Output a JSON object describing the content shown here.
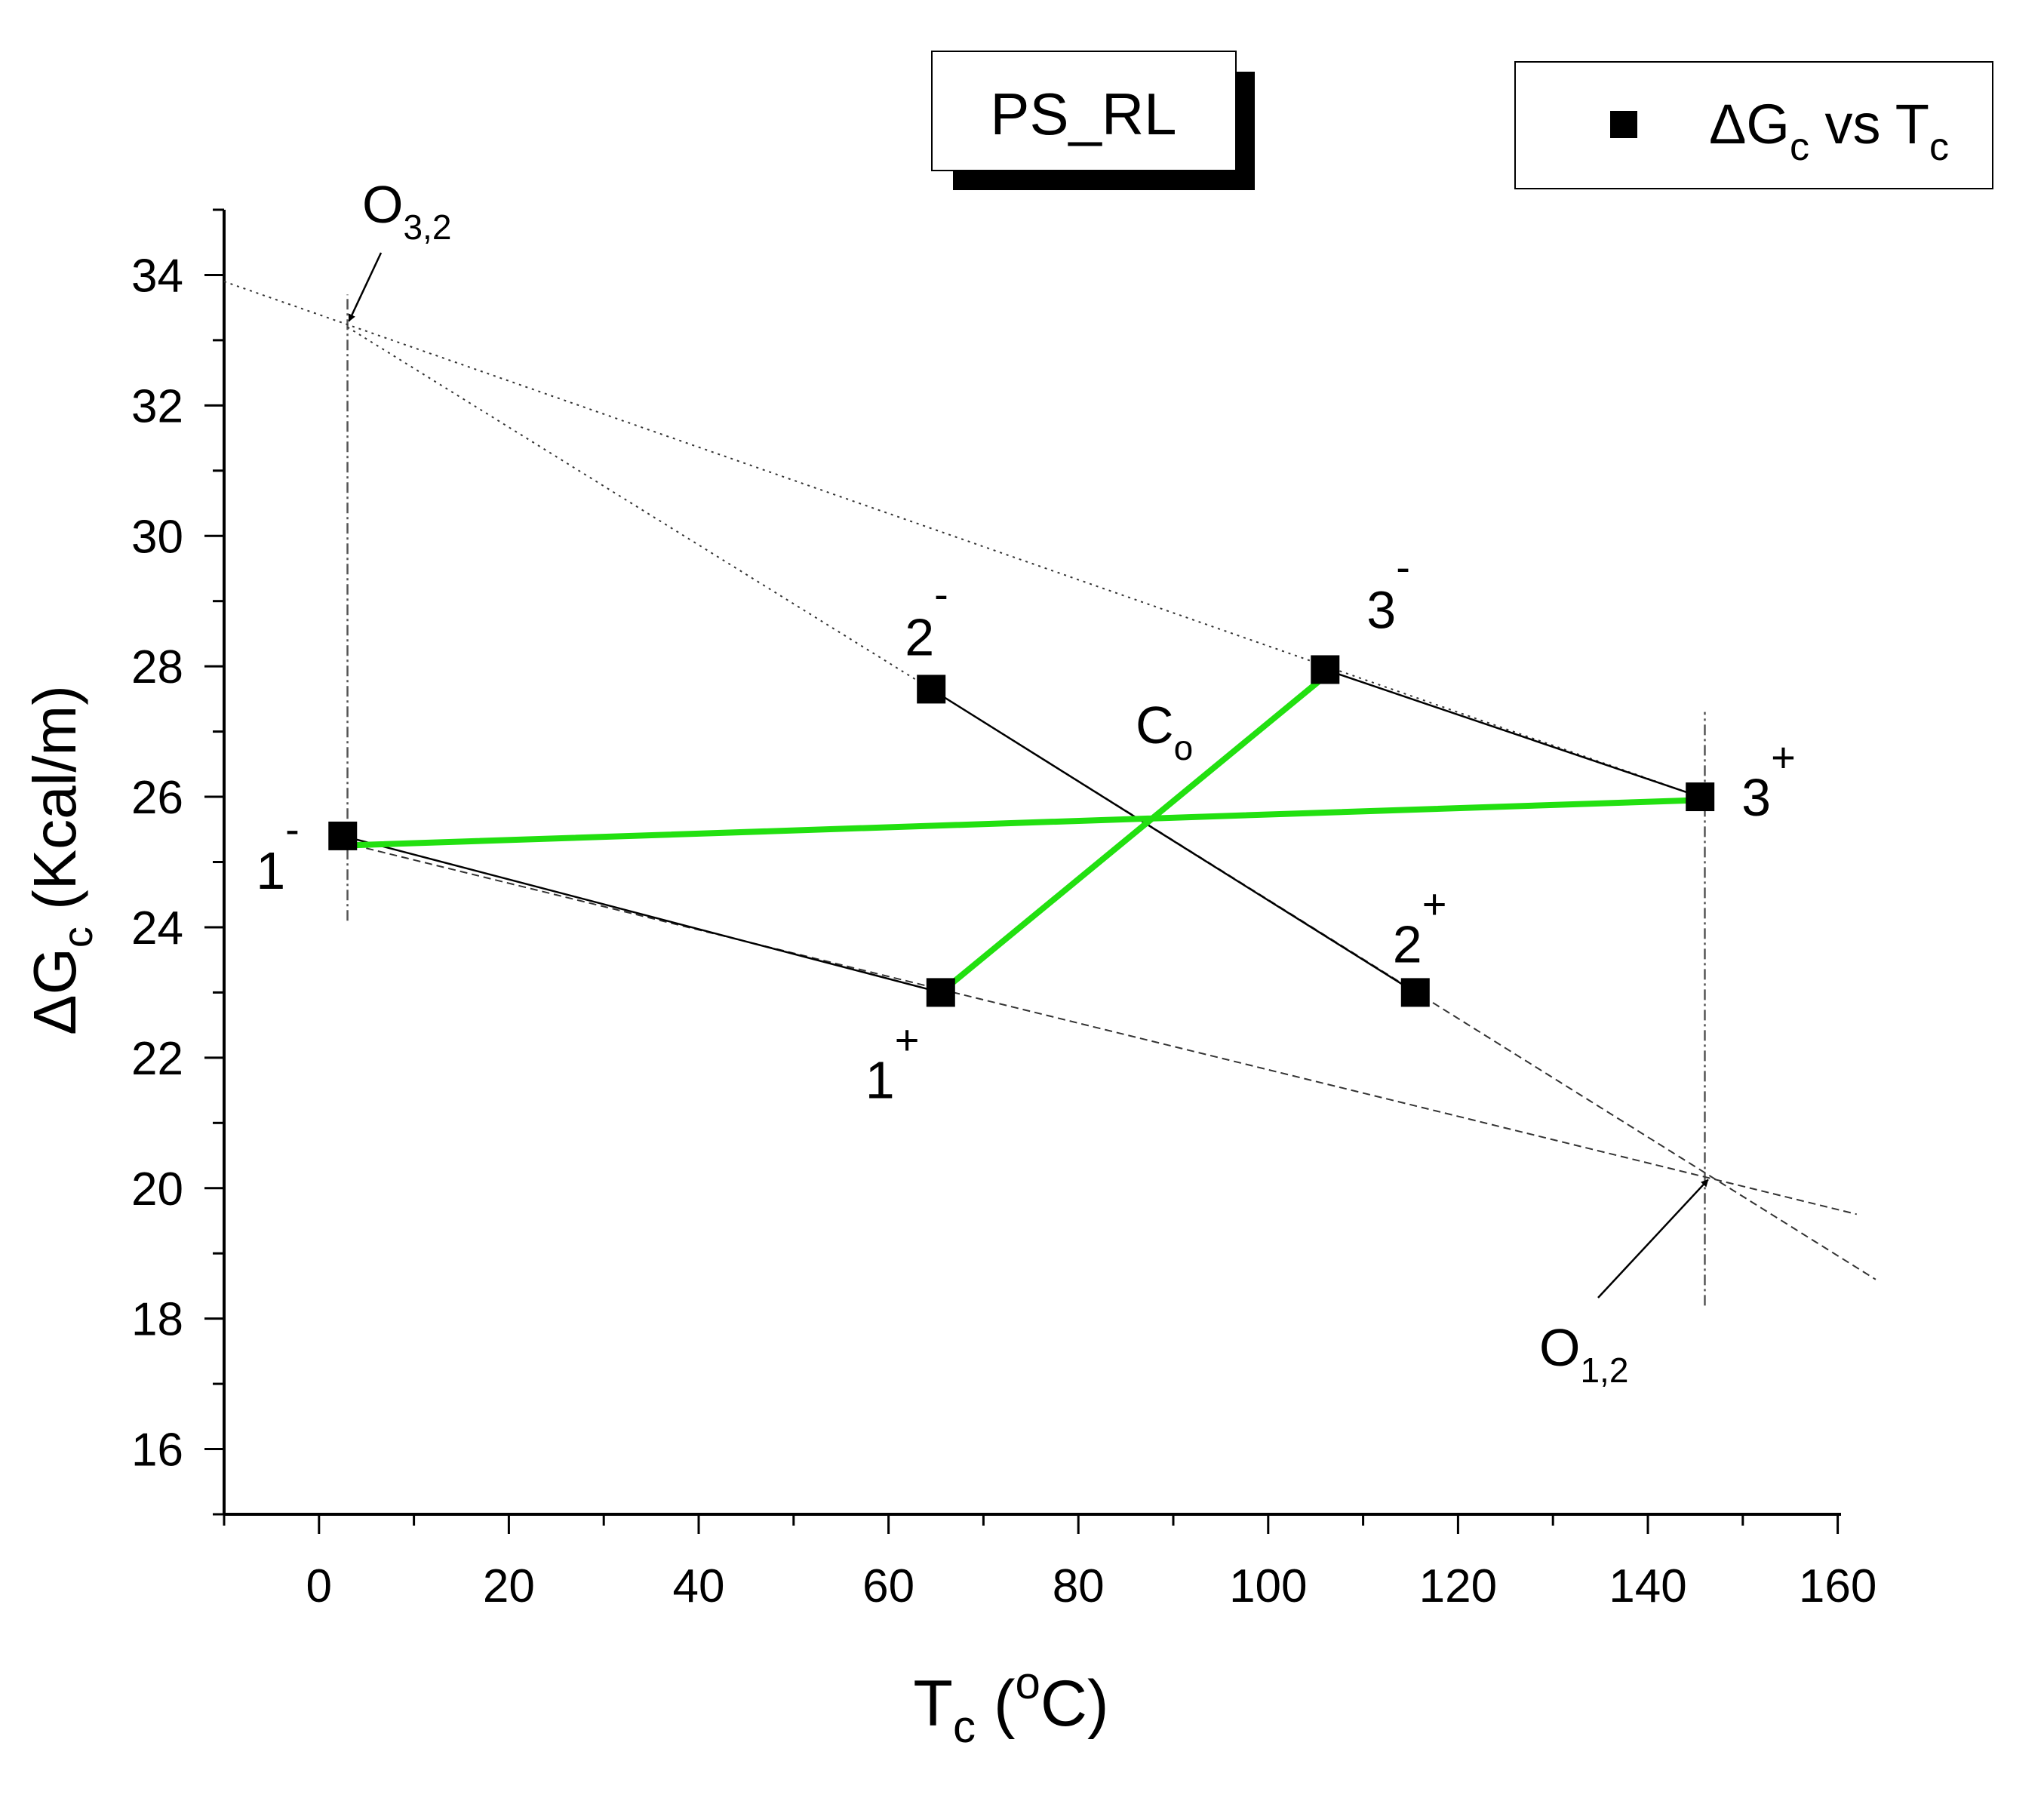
{
  "chart_data": {
    "type": "scatter",
    "title": "PS_RL",
    "xlabel": {
      "main": "T",
      "sub": "c",
      "open": " (",
      "sup": "o",
      "close": "C)"
    },
    "ylabel": {
      "main": "ΔG",
      "sub": "c",
      "rest": " (Kcal/m)"
    },
    "xlim": [
      -10,
      160
    ],
    "ylim": [
      15,
      35
    ],
    "xticks": [
      0,
      20,
      40,
      60,
      80,
      100,
      120,
      140,
      160
    ],
    "yticks": [
      16,
      18,
      20,
      22,
      24,
      26,
      28,
      30,
      32,
      34
    ],
    "tick_labels_x": [
      "0",
      "20",
      "40",
      "60",
      "80",
      "100",
      "120",
      "140",
      "160"
    ],
    "tick_labels_y": [
      "16",
      "18",
      "20",
      "22",
      "24",
      "26",
      "28",
      "30",
      "32",
      "34"
    ],
    "legend": {
      "position": "top-right",
      "label_main": "ΔG",
      "label_sub": "c",
      "label_mid": " vs T",
      "label_sub2": "c"
    },
    "points": [
      {
        "id": "p1m",
        "x": 2.5,
        "y": 25.4,
        "label": "1",
        "sign": "-"
      },
      {
        "id": "p1p",
        "x": 65.5,
        "y": 23.0,
        "label": "1",
        "sign": "+"
      },
      {
        "id": "p2m",
        "x": 64.5,
        "y": 27.65,
        "label": "2",
        "sign": "-"
      },
      {
        "id": "p2p",
        "x": 115.5,
        "y": 23.0,
        "label": "2",
        "sign": "+"
      },
      {
        "id": "p3m",
        "x": 106.0,
        "y": 27.95,
        "label": "3",
        "sign": "-"
      },
      {
        "id": "p3p",
        "x": 145.5,
        "y": 26.0,
        "label": "3",
        "sign": "+"
      }
    ],
    "segments_solid": [
      {
        "from": [
          2.5,
          25.4
        ],
        "to": [
          65.5,
          23.0
        ]
      },
      {
        "from": [
          64.5,
          27.65
        ],
        "to": [
          115.5,
          23.0
        ]
      },
      {
        "from": [
          106.0,
          27.95
        ],
        "to": [
          145.5,
          26.0
        ]
      }
    ],
    "green_lines": [
      {
        "from": [
          2.0,
          25.25
        ],
        "to": [
          145.5,
          25.95
        ]
      },
      {
        "from": [
          65.5,
          23.0
        ],
        "to": [
          106.0,
          27.85
        ]
      }
    ],
    "dashed_lines": [
      {
        "from": [
          2.5,
          25.3
        ],
        "to": [
          162.0,
          19.6
        ]
      },
      {
        "from": [
          64.5,
          27.65
        ],
        "to": [
          164.0,
          18.6
        ]
      }
    ],
    "dotted_lines": [
      {
        "from": [
          -10.0,
          33.9
        ],
        "to": [
          145.5,
          26.0
        ]
      },
      {
        "from": [
          3.0,
          33.2
        ],
        "to": [
          64.5,
          27.65
        ]
      }
    ],
    "vertical_lines": [
      {
        "x": 3.0,
        "y1": 24.1,
        "y2": 33.7
      },
      {
        "x": 146.0,
        "y1": 18.2,
        "y2": 27.3
      }
    ],
    "annotations": [
      {
        "id": "o32",
        "main": "O",
        "sub": "3,2",
        "at": [
          3.0,
          33.2
        ]
      },
      {
        "id": "o12",
        "main": "O",
        "sub": "1,2",
        "at": [
          146.5,
          20.2
        ]
      },
      {
        "id": "co",
        "main": "C",
        "sub": "o",
        "at": [
          87.5,
          25.65
        ]
      }
    ]
  }
}
